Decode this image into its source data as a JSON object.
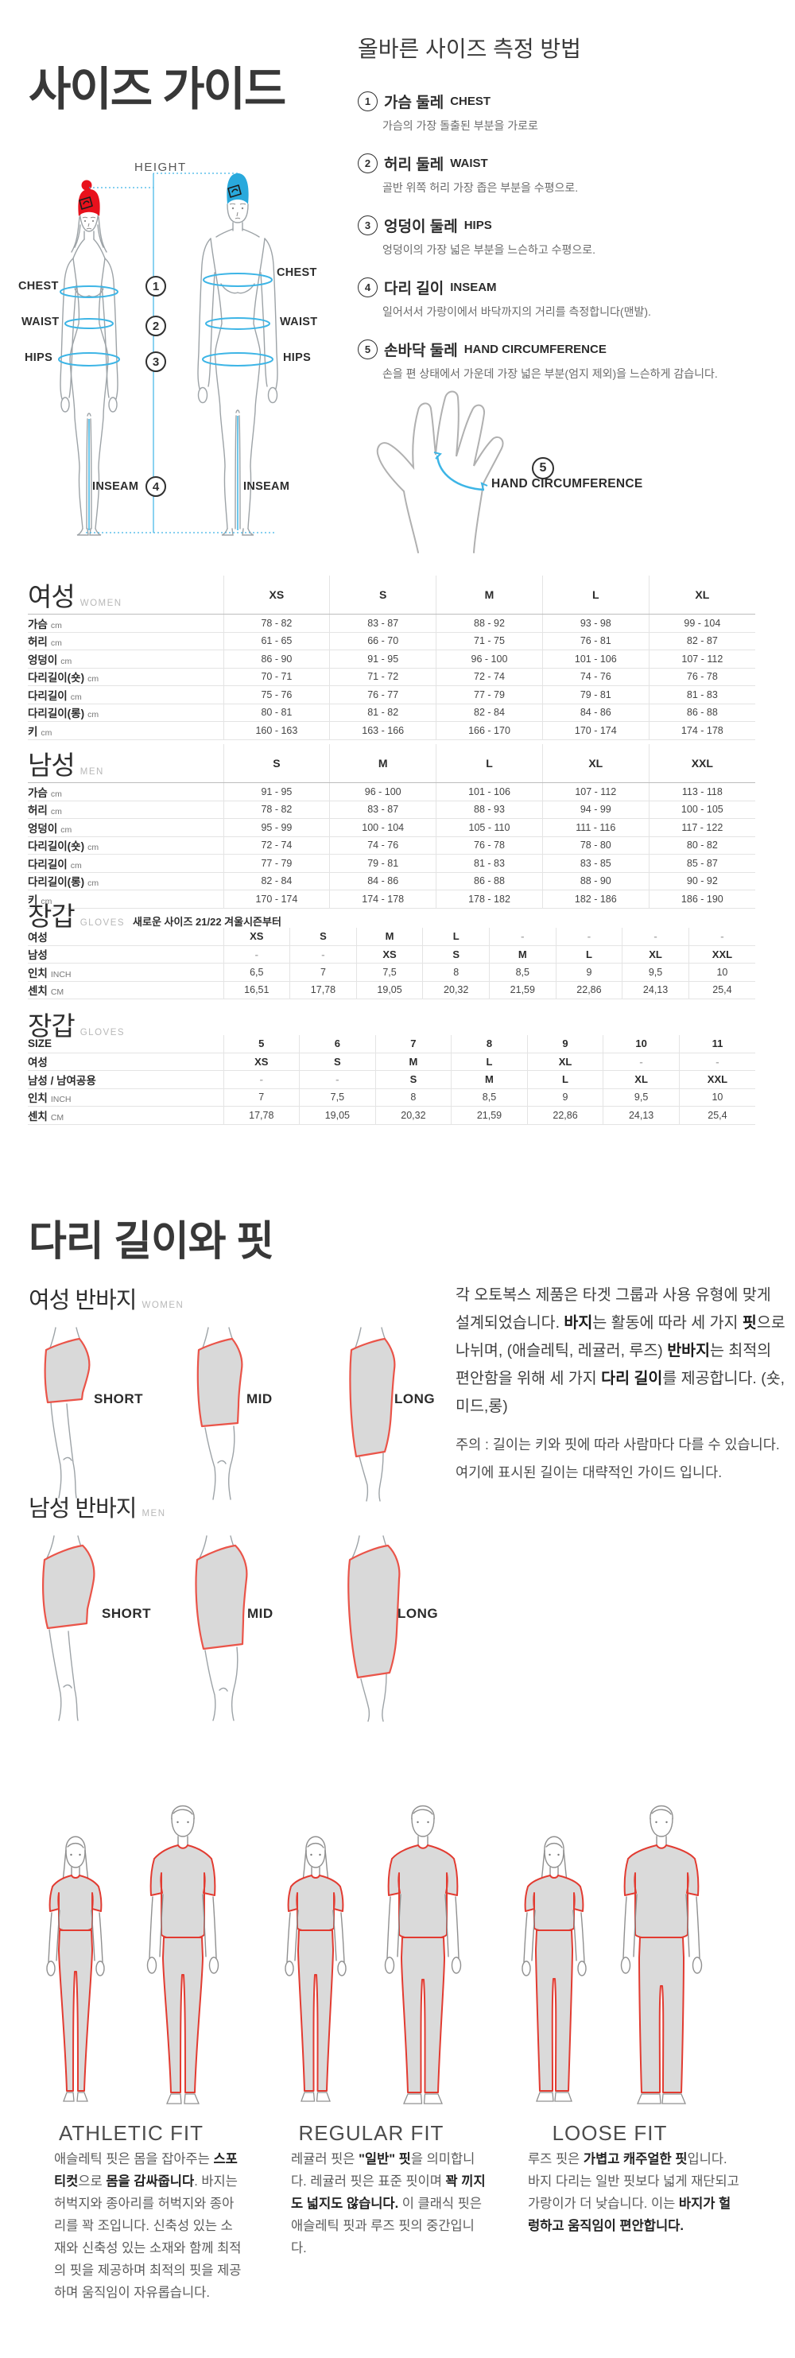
{
  "page_title": "사이즈 가이드",
  "section2_title": "다리 길이와 핏",
  "howto": {
    "title": "올바른 사이즈 측정 방법",
    "items": [
      {
        "num": "1",
        "label": "가슴 둘레",
        "en": "CHEST",
        "desc": "가슴의 가장 돌출된 부분을 가로로"
      },
      {
        "num": "2",
        "label": "허리 둘레",
        "en": "WAIST",
        "desc": "골반 위쪽 허리 가장 좁은 부분을 수평으로."
      },
      {
        "num": "3",
        "label": "엉덩이 둘레",
        "en": "HIPS",
        "desc": "엉덩이의 가장 넓은 부분을 느슨하고 수평으로."
      },
      {
        "num": "4",
        "label": "다리 길이",
        "en": "INSEAM",
        "desc": "일어서서 가랑이에서 바닥까지의 거리를 측정합니다(맨발)."
      },
      {
        "num": "5",
        "label": "손바닥 둘레",
        "en": "HAND CIRCUMFERENCE",
        "desc": "손을 편 상태에서 가운데 가장 넓은 부분(엄지 제외)을 느슨하게 감습니다."
      }
    ]
  },
  "diagram": {
    "height_label": "HEIGHT",
    "chest": "CHEST",
    "waist": "WAIST",
    "hips": "HIPS",
    "inseam": "INSEAM",
    "hand_label": "HAND CIRCUMFERENCE",
    "markers": {
      "m1": "1",
      "m2": "2",
      "m3": "3",
      "m4": "4",
      "m5": "5"
    },
    "colors": {
      "measure_line": "#3db5e6",
      "woman_beanie": "#e8111c",
      "man_beanie": "#29a9dc"
    }
  },
  "tables": {
    "women": {
      "title": "여성",
      "sub": "WOMEN",
      "cols": [
        "XS",
        "S",
        "M",
        "L",
        "XL"
      ],
      "rows": [
        {
          "label": "가슴",
          "sub": "cm",
          "values": [
            "78 - 82",
            "83 - 87",
            "88 - 92",
            "93 - 98",
            "99 - 104"
          ]
        },
        {
          "label": "허리",
          "sub": "cm",
          "values": [
            "61 - 65",
            "66 - 70",
            "71 - 75",
            "76 - 81",
            "82 - 87"
          ]
        },
        {
          "label": "엉덩이",
          "sub": "cm",
          "values": [
            "86 - 90",
            "91 - 95",
            "96 - 100",
            "101 - 106",
            "107 - 112"
          ]
        },
        {
          "label": "다리길이(숏)",
          "sub": "cm",
          "values": [
            "70 - 71",
            "71 - 72",
            "72 - 74",
            "74 - 76",
            "76 - 78"
          ]
        },
        {
          "label": "다리길이",
          "sub": "cm",
          "values": [
            "75 - 76",
            "76 - 77",
            "77 - 79",
            "79 - 81",
            "81 - 83"
          ]
        },
        {
          "label": "다리길이(롱)",
          "sub": "cm",
          "values": [
            "80 - 81",
            "81 - 82",
            "82 - 84",
            "84 - 86",
            "86 - 88"
          ]
        },
        {
          "label": "키",
          "sub": "cm",
          "values": [
            "160 - 163",
            "163 - 166",
            "166 - 170",
            "170 - 174",
            "174 - 178"
          ]
        }
      ]
    },
    "men": {
      "title": "남성",
      "sub": "MEN",
      "cols": [
        "S",
        "M",
        "L",
        "XL",
        "XXL"
      ],
      "rows": [
        {
          "label": "가슴",
          "sub": "cm",
          "values": [
            "91 - 95",
            "96 - 100",
            "101 - 106",
            "107 - 112",
            "113 - 118"
          ]
        },
        {
          "label": "허리",
          "sub": "cm",
          "values": [
            "78 - 82",
            "83 - 87",
            "88 - 93",
            "94 - 99",
            "100 - 105"
          ]
        },
        {
          "label": "엉덩이",
          "sub": "cm",
          "values": [
            "95 - 99",
            "100 - 104",
            "105 - 110",
            "111 - 116",
            "117 - 122"
          ]
        },
        {
          "label": "다리길이(숏)",
          "sub": "cm",
          "values": [
            "72 - 74",
            "74 - 76",
            "76 - 78",
            "78 - 80",
            "80 - 82"
          ]
        },
        {
          "label": "다리길이",
          "sub": "cm",
          "values": [
            "77 - 79",
            "79 - 81",
            "81 - 83",
            "83 - 85",
            "85 - 87"
          ]
        },
        {
          "label": "다리길이(롱)",
          "sub": "cm",
          "values": [
            "82 - 84",
            "84 - 86",
            "86 - 88",
            "88 - 90",
            "90 - 92"
          ]
        },
        {
          "label": "키",
          "sub": "cm",
          "values": [
            "170 - 174",
            "174 - 178",
            "178 - 182",
            "182 - 186",
            "186 - 190"
          ]
        }
      ]
    },
    "gloves1": {
      "title": "장갑",
      "sub": "GLOVES",
      "note": "새로운 사이즈 21/22 겨울시즌부터",
      "topline": true,
      "rows": [
        {
          "label": "여성",
          "strong": true,
          "values": [
            "XS",
            "S",
            "M",
            "L",
            "-",
            "-",
            "-",
            "-"
          ]
        },
        {
          "label": "남성",
          "strong": true,
          "values": [
            "-",
            "-",
            "XS",
            "S",
            "M",
            "L",
            "XL",
            "XXL"
          ]
        },
        {
          "label": "인치",
          "sub": "INCH",
          "values": [
            "6,5",
            "7",
            "7,5",
            "8",
            "8,5",
            "9",
            "9,5",
            "10"
          ]
        },
        {
          "label": "센치",
          "sub": "CM",
          "values": [
            "16,51",
            "17,78",
            "19,05",
            "20,32",
            "21,59",
            "22,86",
            "24,13",
            "25,4"
          ]
        }
      ]
    },
    "gloves2": {
      "title": "장갑",
      "sub": "GLOVES",
      "topline": true,
      "rows": [
        {
          "label": "SIZE",
          "strong": true,
          "values": [
            "5",
            "6",
            "7",
            "8",
            "9",
            "10",
            "11"
          ]
        },
        {
          "label": "여성",
          "strong": true,
          "values": [
            "XS",
            "S",
            "M",
            "L",
            "XL",
            "-",
            "-"
          ]
        },
        {
          "label": "남성 / 남여공용",
          "strong": true,
          "values": [
            "-",
            "-",
            "S",
            "M",
            "L",
            "XL",
            "XXL"
          ]
        },
        {
          "label": "인치",
          "sub": "INCH",
          "values": [
            "7",
            "7,5",
            "8",
            "8,5",
            "9",
            "9,5",
            "10"
          ]
        },
        {
          "label": "센치",
          "sub": "CM",
          "values": [
            "17,78",
            "19,05",
            "20,32",
            "21,59",
            "22,86",
            "24,13",
            "25,4"
          ]
        }
      ]
    }
  },
  "legfit": {
    "women_title": "여성 반바지",
    "women_sub": "WOMEN",
    "men_title": "남성 반바지",
    "men_sub": "MEN",
    "lengths": [
      "SHORT",
      "MID",
      "LONG"
    ],
    "paragraph": [
      {
        "t": "각 오토복스 제품은 타겟 그룹과 사용 유형에 맞게 설계되었습니다. "
      },
      {
        "t": "바지",
        "b": true
      },
      {
        "t": "는 활동에 따라 세 가지 "
      },
      {
        "t": "핏",
        "b": true
      },
      {
        "t": "으로 나뉘며, (애슬레틱, 레귤러, 루즈) "
      },
      {
        "t": "반바지",
        "b": true
      },
      {
        "t": "는 최적의 편안함을 위해 세 가지 "
      },
      {
        "t": "다리 길이",
        "b": true
      },
      {
        "t": "를 제공합니다. (숏,미드,롱)"
      }
    ],
    "note": [
      {
        "t": "주의 : 길이는 키와 핏에 따라 사람마다 다를 수 있습니다. 여기에 표시된 길이는 대략적인 가이드 입니다."
      }
    ]
  },
  "fits": [
    {
      "name": "ATHLETIC FIT",
      "desc": [
        {
          "t": "애슬레틱 핏은 몸을 잡아주는 "
        },
        {
          "t": "스포티컷",
          "b": true
        },
        {
          "t": "으로 "
        },
        {
          "t": "몸을 감싸줍니다",
          "b": true
        },
        {
          "t": ". 바지는 허벅지와 종아리를 허벅지와 종아리를 꽉 조입니다. 신축성 있는 소재와 신축성 있는 소재와 함께 최적의 핏을 제공하며 최적의 핏을 제공하며 움직임이 자유롭습니다."
        }
      ]
    },
    {
      "name": "REGULAR FIT",
      "desc": [
        {
          "t": "레귤러 핏은 "
        },
        {
          "t": "\"일반\" 핏",
          "b": true
        },
        {
          "t": "을 의미합니다. 레귤러 핏은 표준 핏이며 "
        },
        {
          "t": "꽉 끼지도 넓지도 않습니다.",
          "b": true
        },
        {
          "t": " 이 클래식 핏은 애슬레틱 핏과 루즈 핏의 중간입니다."
        }
      ]
    },
    {
      "name": "LOOSE FIT",
      "desc": [
        {
          "t": "루즈 핏은 "
        },
        {
          "t": "가볍고 캐주얼한 핏",
          "b": true
        },
        {
          "t": "입니다. 바지 다리는 일반 핏보다 넓게 재단되고 가랑이가 더 낮습니다. 이는 "
        },
        {
          "t": "바지가 헐렁하고 움직임이 편안합니다.",
          "b": true
        }
      ]
    }
  ]
}
